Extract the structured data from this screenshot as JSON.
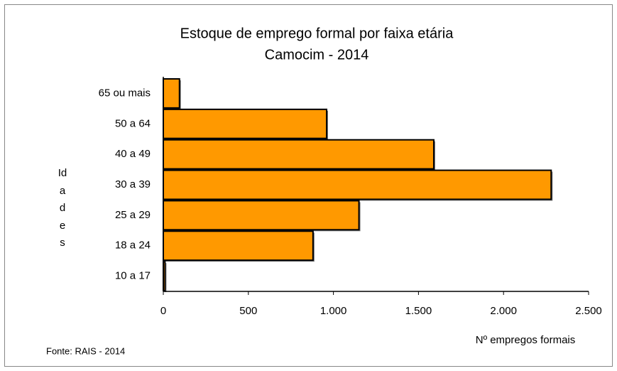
{
  "chart_data": {
    "type": "bar",
    "orientation": "horizontal",
    "title": "Estoque de emprego formal por faixa etária",
    "subtitle": "Camocim - 2014",
    "categories": [
      "65 ou mais",
      "50 a 64",
      "40 a 49",
      "30 a 39",
      "25 a 29",
      "18 a 24",
      "10 a 17"
    ],
    "values": [
      95,
      960,
      1590,
      2280,
      1150,
      880,
      10
    ],
    "color": "#ff9900",
    "xlim": [
      0,
      2500
    ],
    "xticks": [
      0,
      500,
      {
        "value": 1000,
        "label": "1.000"
      },
      {
        "value": 1500,
        "label": "1.500"
      },
      {
        "value": 2000,
        "label": "2.000"
      },
      {
        "value": 2500,
        "label": "2.500"
      }
    ],
    "xlabel": "Nº empregos formais",
    "ylabel": "Idades",
    "source": "Fonte: RAIS - 2014",
    "grid": false
  }
}
